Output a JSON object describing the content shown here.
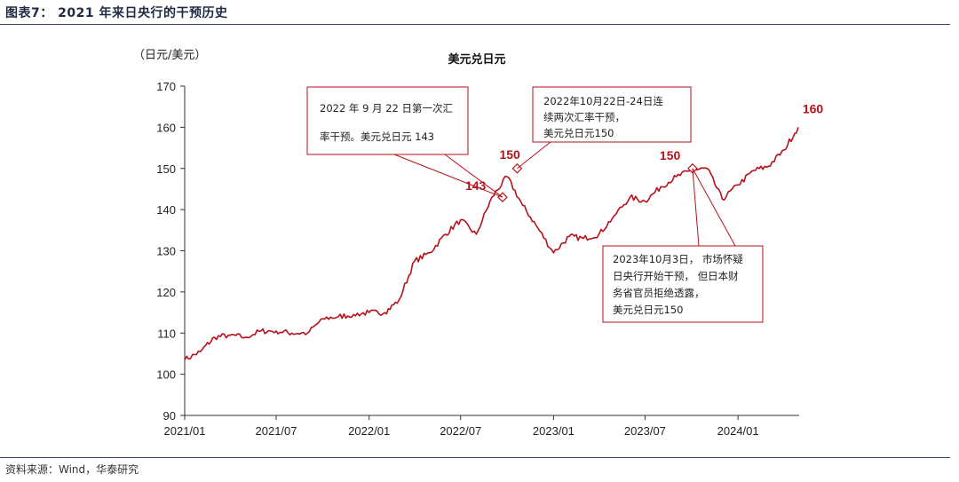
{
  "figure": {
    "title": "图表7：  2021 年来日央行的干预历史",
    "source": "资料来源：Wind，华泰研究"
  },
  "colors": {
    "line": "#b5121b",
    "rule": "#2e4a7a",
    "callout_border": "#b5121b"
  },
  "chart_data": {
    "type": "line",
    "title": "美元兑日元",
    "ylabel": "（日元/美元）",
    "xlabel": "",
    "ylim": [
      90,
      170
    ],
    "yticks": [
      "90",
      "100",
      "110",
      "120",
      "130",
      "140",
      "150",
      "160",
      "170"
    ],
    "xticks": [
      "2021/01",
      "2021/07",
      "2022/01",
      "2022/07",
      "2023/01",
      "2023/07",
      "2024/01"
    ],
    "grid": false,
    "series": [
      {
        "values_by_month": [
          [
            "2021-01",
            103.5
          ],
          [
            "2021-02",
            105.5
          ],
          [
            "2021-03",
            109.0
          ],
          [
            "2021-04",
            109.5
          ],
          [
            "2021-05",
            109.0
          ],
          [
            "2021-06",
            110.5
          ],
          [
            "2021-07",
            110.5
          ],
          [
            "2021-08",
            110.0
          ],
          [
            "2021-09",
            110.0
          ],
          [
            "2021-10",
            113.5
          ],
          [
            "2021-11",
            114.0
          ],
          [
            "2021-12",
            114.5
          ],
          [
            "2022-01",
            115.0
          ],
          [
            "2022-02",
            115.0
          ],
          [
            "2022-03",
            118.0
          ],
          [
            "2022-04",
            127.5
          ],
          [
            "2022-05",
            129.5
          ],
          [
            "2022-06",
            134.0
          ],
          [
            "2022-07",
            137.5
          ],
          [
            "2022-08",
            134.0
          ],
          [
            "2022-09",
            143.0
          ],
          [
            "2022-10",
            148.0
          ],
          [
            "2022-11",
            141.0
          ],
          [
            "2022-12",
            135.5
          ],
          [
            "2023-01",
            129.5
          ],
          [
            "2023-02",
            133.5
          ],
          [
            "2023-03",
            133.0
          ],
          [
            "2023-04",
            134.0
          ],
          [
            "2023-05",
            138.5
          ],
          [
            "2023-06",
            143.0
          ],
          [
            "2023-07",
            142.0
          ],
          [
            "2023-08",
            145.5
          ],
          [
            "2023-09",
            148.0
          ],
          [
            "2023-10",
            149.5
          ],
          [
            "2023-11",
            150.0
          ],
          [
            "2023-12",
            142.5
          ],
          [
            "2024-01",
            146.0
          ],
          [
            "2024-02",
            149.5
          ],
          [
            "2024-03",
            150.5
          ],
          [
            "2024-04",
            154.5
          ],
          [
            "2024-04-29",
            160.0
          ]
        ]
      }
    ],
    "markers": [
      {
        "date": "2022-09-22",
        "value": 143
      },
      {
        "date": "2022-10-21",
        "value": 150
      },
      {
        "date": "2023-10-03",
        "value": 150
      }
    ],
    "value_labels": [
      {
        "text": "143",
        "date": "2022-09-22",
        "value": 143
      },
      {
        "text": "150",
        "date": "2022-10-21",
        "value": 150
      },
      {
        "text": "150",
        "date": "2023-10-03",
        "value": 150
      },
      {
        "text": "160",
        "date": "2024-04-29",
        "value": 160
      }
    ],
    "annotations": [
      {
        "lines": [
          "2022 年 9 月 22 日第一次汇",
          "率干预。美元兑日元 143"
        ]
      },
      {
        "lines": [
          "2022年10月22日-24日连",
          "续两次汇率干预，",
          "美元兑日元150"
        ]
      },
      {
        "lines": [
          "2023年10月3日，  市场怀疑",
          "日央行开始干预，  但日本财",
          "务省官员拒绝透露，",
          "美元兑日元150"
        ]
      }
    ]
  }
}
